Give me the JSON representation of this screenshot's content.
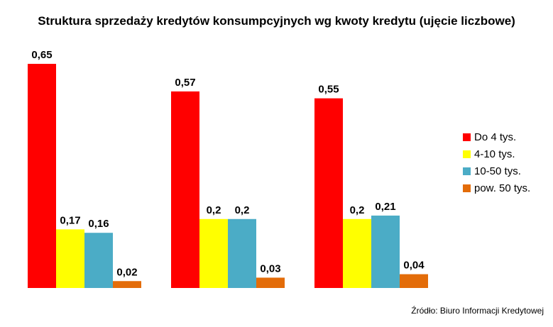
{
  "chart_data": {
    "type": "bar",
    "title": "Struktura sprzedaży kredytów konsumpcyjnych wg kwoty kredytu (ujęcie liczbowe)",
    "categories": [
      "",
      "",
      ""
    ],
    "series": [
      {
        "name": "Do 4 tys.",
        "color": "#ff0000",
        "values": [
          0.65,
          0.57,
          0.55
        ],
        "labels": [
          "0,65",
          "0,57",
          "0,55"
        ]
      },
      {
        "name": "4-10 tys.",
        "color": "#ffff00",
        "values": [
          0.17,
          0.2,
          0.2
        ],
        "labels": [
          "0,17",
          "0,2",
          "0,2"
        ]
      },
      {
        "name": "10-50 tys.",
        "color": "#4bacc6",
        "values": [
          0.16,
          0.2,
          0.21
        ],
        "labels": [
          "0,16",
          "0,2",
          "0,21"
        ]
      },
      {
        "name": "pow. 50 tys.",
        "color": "#e36c09",
        "values": [
          0.02,
          0.03,
          0.04
        ],
        "labels": [
          "0,02",
          "0,03",
          "0,04"
        ]
      }
    ],
    "ylim": [
      0,
      0.65
    ],
    "grid": false,
    "legend_position": "right"
  },
  "source": "Źródło: Biuro Informacji Kredytowej"
}
